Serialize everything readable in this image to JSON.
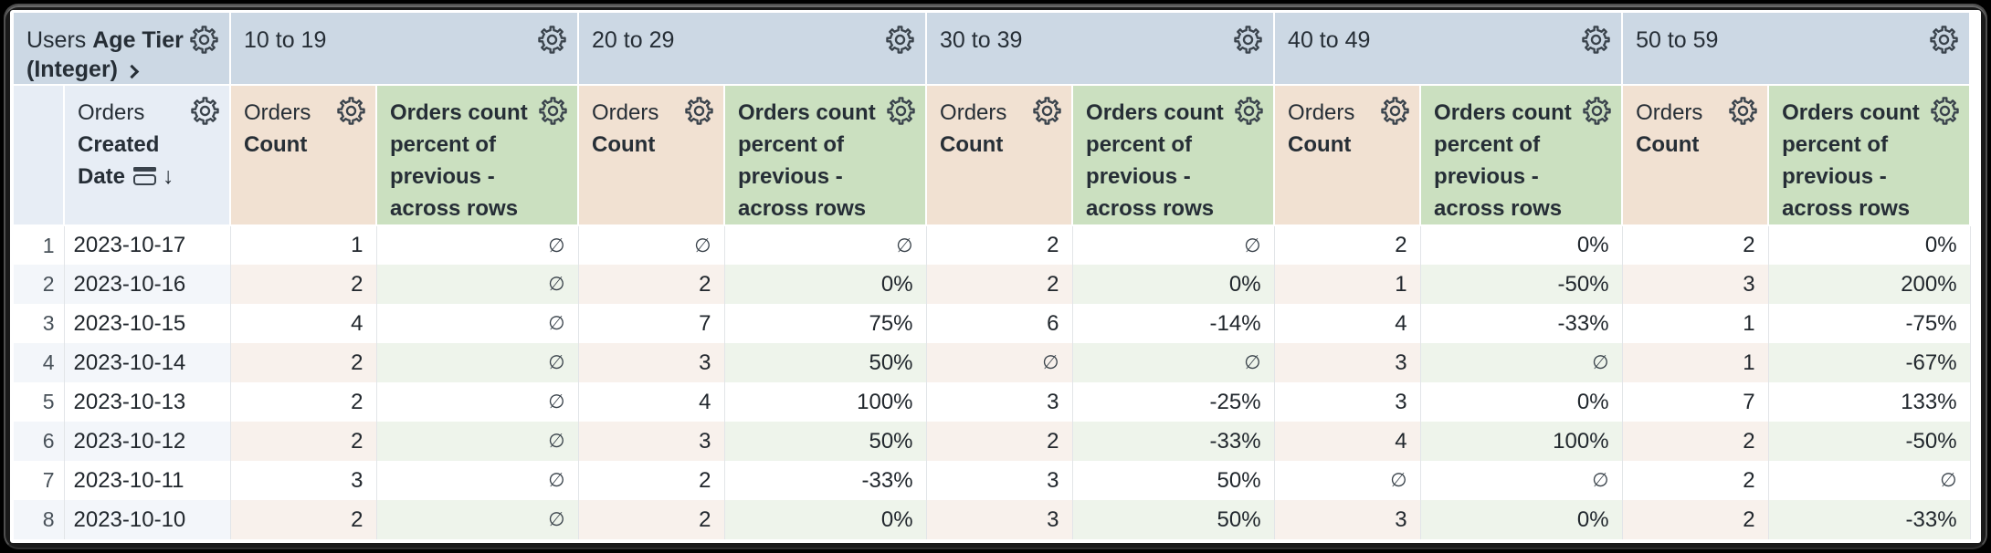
{
  "pivot_axis": {
    "regular": "Users",
    "bold": "Age Tier (Integer)",
    "expand_icon": "chevron-right"
  },
  "tiers": [
    "10 to 19",
    "20 to 29",
    "30 to 39",
    "40 to 49",
    "50 to 59"
  ],
  "row_header": {
    "regular": "Orders",
    "bold": "Created Date",
    "subtotal_icon": "date-group-icon",
    "sort_arrow": "↓",
    "sort_direction": "descending"
  },
  "measures": {
    "count_regular": "Orders",
    "count_bold": "Count",
    "percent": "Orders count percent of previous - across rows"
  },
  "null_symbol": "∅",
  "rows": [
    {
      "n": "1",
      "date": "2023-10-17",
      "values": [
        "1",
        "∅",
        "∅",
        "∅",
        "2",
        "∅",
        "2",
        "0%",
        "2",
        "0%"
      ]
    },
    {
      "n": "2",
      "date": "2023-10-16",
      "values": [
        "2",
        "∅",
        "2",
        "0%",
        "2",
        "0%",
        "1",
        "-50%",
        "3",
        "200%"
      ]
    },
    {
      "n": "3",
      "date": "2023-10-15",
      "values": [
        "4",
        "∅",
        "7",
        "75%",
        "6",
        "-14%",
        "4",
        "-33%",
        "1",
        "-75%"
      ]
    },
    {
      "n": "4",
      "date": "2023-10-14",
      "values": [
        "2",
        "∅",
        "3",
        "50%",
        "∅",
        "∅",
        "3",
        "∅",
        "1",
        "-67%"
      ]
    },
    {
      "n": "5",
      "date": "2023-10-13",
      "values": [
        "2",
        "∅",
        "4",
        "100%",
        "3",
        "-25%",
        "3",
        "0%",
        "7",
        "133%"
      ]
    },
    {
      "n": "6",
      "date": "2023-10-12",
      "values": [
        "2",
        "∅",
        "3",
        "50%",
        "2",
        "-33%",
        "4",
        "100%",
        "2",
        "-50%"
      ]
    },
    {
      "n": "7",
      "date": "2023-10-11",
      "values": [
        "3",
        "∅",
        "2",
        "-33%",
        "3",
        "50%",
        "∅",
        "∅",
        "2",
        "∅"
      ]
    },
    {
      "n": "8",
      "date": "2023-10-10",
      "values": [
        "2",
        "∅",
        "2",
        "0%",
        "3",
        "50%",
        "3",
        "0%",
        "2",
        "-33%"
      ]
    }
  ],
  "colors": {
    "tier_header_bg": "#ccd8e4",
    "dimension_header_bg": "#e7edf5",
    "count_header_bg": "#f1e1d2",
    "percent_header_bg": "#cbe0c0",
    "stripe_dimension": "#f3f6fa",
    "stripe_count": "#f8f1ec",
    "stripe_percent": "#eef4eb",
    "header_text": "#262e36",
    "cell_text": "#21272d",
    "icon": "#3a434c",
    "frame": "#1a1a1a"
  }
}
